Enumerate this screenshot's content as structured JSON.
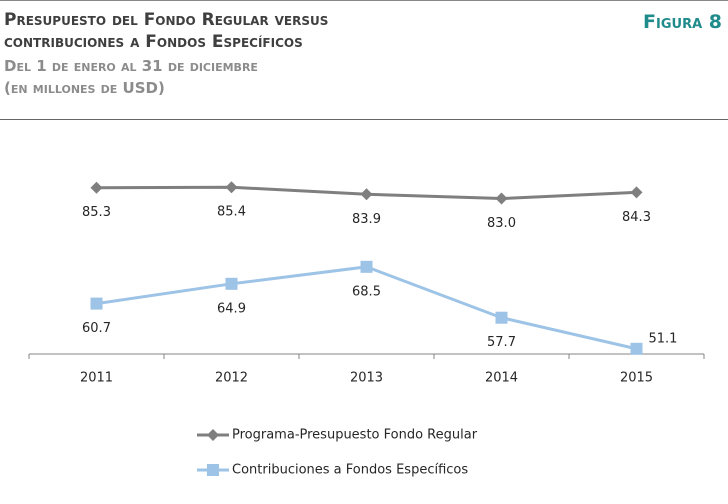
{
  "chart_data": {
    "type": "line",
    "title": [
      "Presupuesto del Fondo Regular versus",
      "contribuciones a Fondos Específicos"
    ],
    "subtitle": "Del 1 de enero al 31 de diciembre",
    "units": "(en millones de USD)",
    "figure_label": "Figura 8",
    "categories": [
      "2011",
      "2012",
      "2013",
      "2014",
      "2015"
    ],
    "series": [
      {
        "name": "Programa-Presupuesto Fondo Regular",
        "color": "#7f7f7f",
        "marker": "diamond",
        "values": [
          85.3,
          85.4,
          83.9,
          83,
          84.3
        ],
        "value_labels": [
          "85.3",
          "85.4",
          "83.9",
          "83.0",
          "84.3"
        ]
      },
      {
        "name": "Contribuciones a Fondos Específicos",
        "color": "#9dc3e6",
        "marker": "square",
        "values": [
          60.7,
          64.9,
          68.5,
          57.7,
          51.1
        ],
        "value_labels": [
          "60.7",
          "64.9",
          "68.5",
          "57.7",
          "51.1"
        ]
      }
    ],
    "ylim": [
      50,
      95
    ],
    "grid": false,
    "legend": "bottom"
  }
}
